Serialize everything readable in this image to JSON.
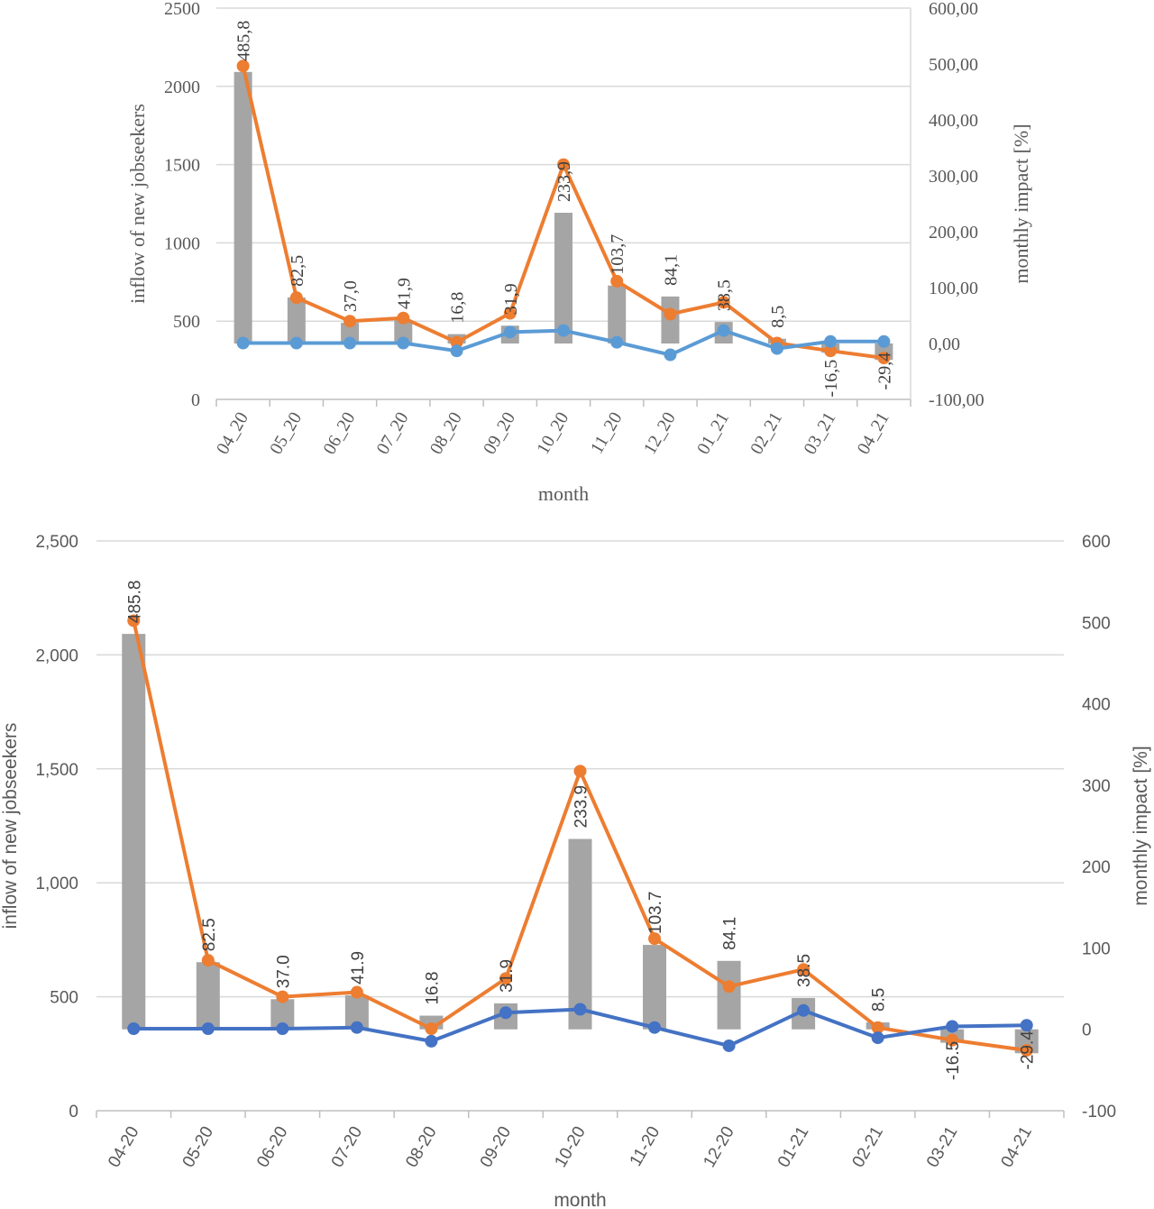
{
  "chart_data": [
    {
      "type": "bar",
      "style": "serif",
      "xlabel": "month",
      "ylabel": "inflow of new jobseekers",
      "y2label": "monthly impact [%]",
      "categories": [
        "04_20",
        "05_20",
        "06_20",
        "07_20",
        "08_20",
        "09_20",
        "10_20",
        "11_20",
        "12_20",
        "01_21",
        "02_21",
        "03_21",
        "04_21"
      ],
      "yticks": [
        "0",
        "500",
        "1000",
        "1500",
        "2000",
        "2500"
      ],
      "y2ticks": [
        "-100,00",
        "0,00",
        "100,00",
        "200,00",
        "300,00",
        "400,00",
        "500,00",
        "600,00"
      ],
      "ylim": [
        0,
        2500
      ],
      "y2lim": [
        -100,
        600
      ],
      "grid": true,
      "bars": {
        "axis": "y2",
        "values": [
          485.8,
          82.5,
          37.0,
          41.9,
          16.8,
          31.9,
          233.9,
          103.7,
          84.1,
          38.5,
          8.5,
          -16.5,
          -29.4
        ]
      },
      "data_labels": [
        "485,8",
        "82,5",
        "37,0",
        "41,9",
        "16,8",
        "31,9",
        "233,9",
        "103,7",
        "84,1",
        "38,5",
        "8,5",
        "-16,5",
        "-29,4"
      ],
      "series": [
        {
          "axis": "y",
          "color": "#ED7D31",
          "values": [
            2130,
            650,
            500,
            520,
            365,
            550,
            1500,
            755,
            545,
            620,
            360,
            310,
            265
          ]
        },
        {
          "axis": "y",
          "color": "#5B9BD5",
          "values": [
            360,
            360,
            360,
            360,
            310,
            430,
            440,
            365,
            285,
            440,
            325,
            370,
            370
          ]
        }
      ],
      "bar_color": "#A5A5A5"
    },
    {
      "type": "bar",
      "style": "sans",
      "xlabel": "month",
      "ylabel": "inflow of new jobseekers",
      "y2label": "monthly impact [%]",
      "categories": [
        "04-20",
        "05-20",
        "06-20",
        "07-20",
        "08-20",
        "09-20",
        "10-20",
        "11-20",
        "12-20",
        "01-21",
        "02-21",
        "03-21",
        "04-21"
      ],
      "yticks": [
        "0",
        "500",
        "1,000",
        "1,500",
        "2,000",
        "2,500"
      ],
      "y2ticks": [
        "-100",
        "0",
        "100",
        "200",
        "300",
        "400",
        "500",
        "600"
      ],
      "ylim": [
        0,
        2500
      ],
      "y2lim": [
        -100,
        600
      ],
      "grid": true,
      "bars": {
        "axis": "y2",
        "values": [
          485.8,
          82.5,
          37.0,
          41.9,
          16.8,
          31.9,
          233.9,
          103.7,
          84.1,
          38.5,
          8.5,
          -16.5,
          -29.4
        ]
      },
      "data_labels": [
        "485.8",
        "82.5",
        "37.0",
        "41.9",
        "16.8",
        "31.9",
        "233.9",
        "103.7",
        "84.1",
        "38.5",
        "8.5",
        "-16.5",
        "-29.4"
      ],
      "series": [
        {
          "axis": "y",
          "color": "#ED7D31",
          "values": [
            2150,
            660,
            500,
            520,
            360,
            580,
            1490,
            755,
            545,
            620,
            365,
            310,
            265
          ]
        },
        {
          "axis": "y",
          "color": "#4472C4",
          "values": [
            360,
            360,
            360,
            365,
            305,
            430,
            445,
            365,
            285,
            440,
            320,
            370,
            375
          ]
        }
      ],
      "bar_color": "#A5A5A5"
    }
  ]
}
